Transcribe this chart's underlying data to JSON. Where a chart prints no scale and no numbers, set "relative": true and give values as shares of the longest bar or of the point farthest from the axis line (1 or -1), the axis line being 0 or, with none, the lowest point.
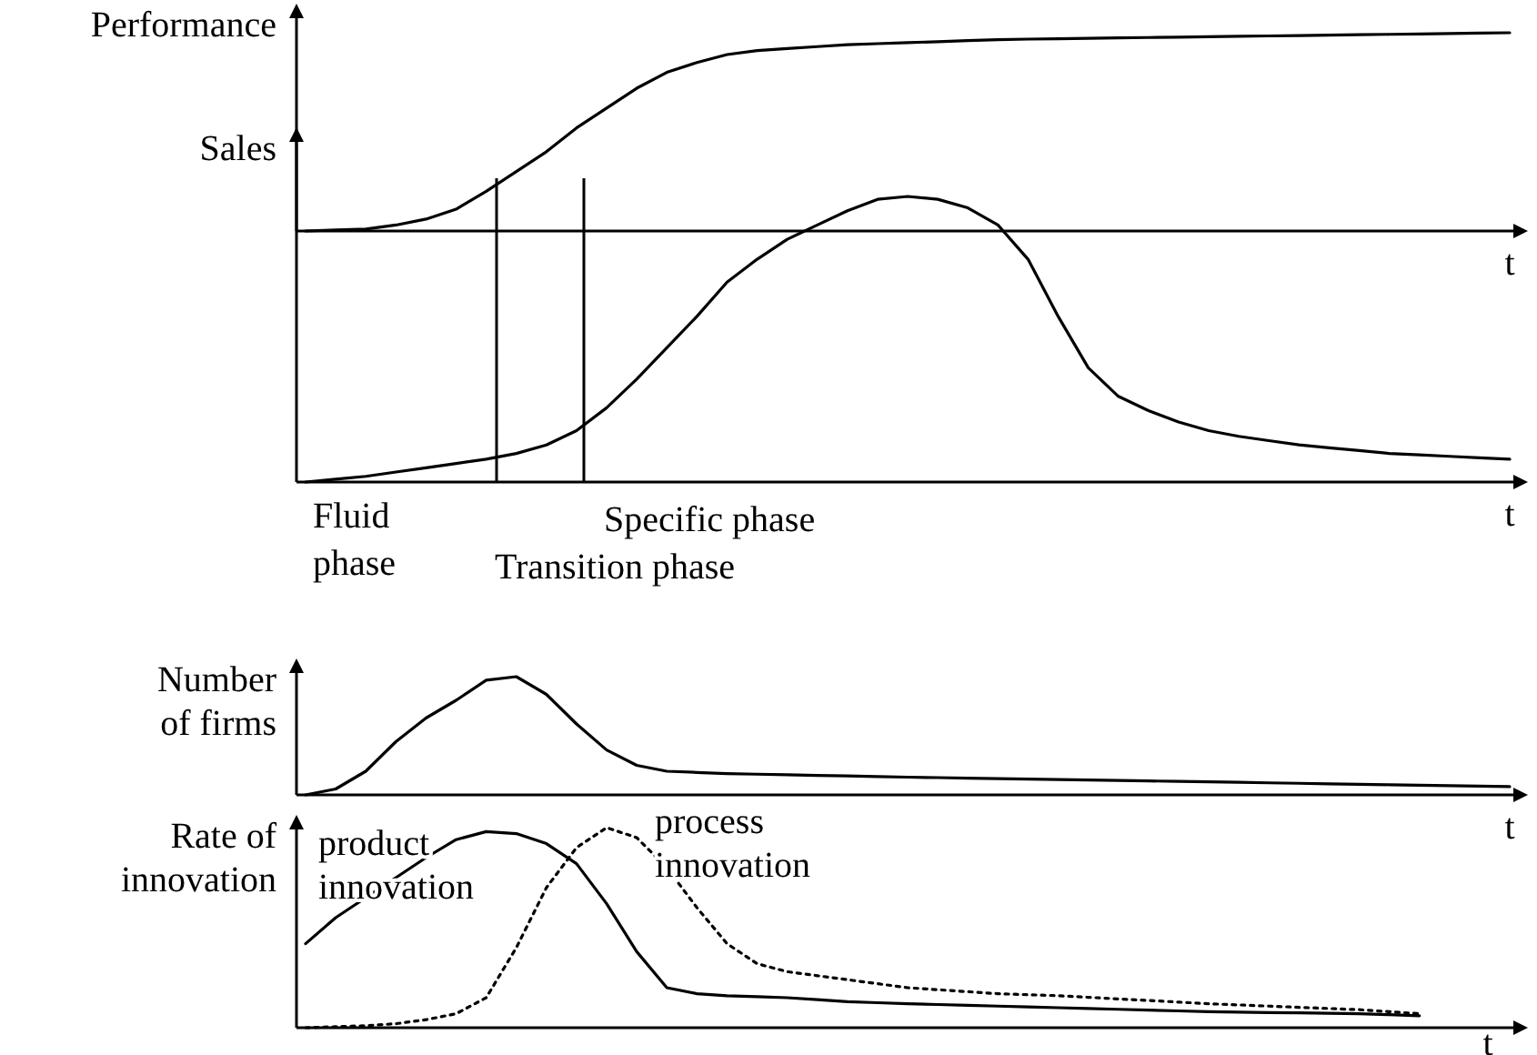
{
  "chart_data": [
    {
      "type": "line",
      "relative": true,
      "ylabel": "Performance",
      "xlabel": "t",
      "legend": false,
      "categories": [
        null,
        null,
        null,
        null,
        null,
        null,
        null,
        null,
        null,
        null,
        null,
        null,
        null,
        null,
        null,
        null,
        null,
        null,
        null,
        null,
        null,
        null,
        null,
        null,
        null,
        null,
        null,
        null,
        null,
        null,
        null,
        null,
        null,
        null,
        null,
        null,
        null,
        null,
        null,
        null,
        null
      ],
      "series": [
        {
          "color": "#000000",
          "line_style": "solid",
          "values": [
            0,
            0.005,
            0.01,
            0.03,
            0.06,
            0.11,
            0.2,
            0.3,
            0.4,
            0.52,
            0.62,
            0.72,
            0.8,
            0.85,
            0.89,
            0.91,
            0.92,
            0.93,
            0.94,
            0.945,
            0.95,
            0.955,
            0.96,
            0.965,
            0.968,
            0.97,
            0.972,
            0.974,
            0.976,
            0.978,
            0.98,
            0.982,
            0.984,
            0.986,
            0.988,
            0.99,
            0.992,
            0.994,
            0.996,
            0.998,
            1
          ]
        }
      ]
    },
    {
      "type": "line",
      "relative": true,
      "ylabel": "Sales",
      "xlabel": "t",
      "legend": false,
      "categories": [
        null,
        null,
        null,
        null,
        null,
        null,
        null,
        null,
        null,
        null,
        null,
        null,
        null,
        null,
        null,
        null,
        null,
        null,
        null,
        null,
        null,
        null,
        null,
        null,
        null,
        null,
        null,
        null,
        null,
        null,
        null,
        null,
        null,
        null,
        null,
        null,
        null,
        null,
        null,
        null,
        null
      ],
      "annotations": [
        "Fluid phase",
        "Transition phase",
        "Specific phase"
      ],
      "series": [
        {
          "color": "#000000",
          "line_style": "solid",
          "values": [
            0,
            0.01,
            0.02,
            0.035,
            0.05,
            0.065,
            0.08,
            0.1,
            0.13,
            0.18,
            0.26,
            0.36,
            0.47,
            0.58,
            0.7,
            0.78,
            0.85,
            0.9,
            0.95,
            0.99,
            1,
            0.99,
            0.96,
            0.9,
            0.78,
            0.58,
            0.4,
            0.3,
            0.25,
            0.21,
            0.18,
            0.16,
            0.145,
            0.13,
            0.12,
            0.11,
            0.1,
            0.095,
            0.09,
            0.085,
            0.08
          ]
        }
      ]
    },
    {
      "type": "line",
      "relative": true,
      "ylabel": "Number of firms",
      "xlabel": "t",
      "legend": false,
      "categories": [
        null,
        null,
        null,
        null,
        null,
        null,
        null,
        null,
        null,
        null,
        null,
        null,
        null,
        null,
        null,
        null,
        null,
        null,
        null,
        null,
        null,
        null,
        null,
        null,
        null,
        null,
        null,
        null,
        null,
        null,
        null,
        null,
        null,
        null,
        null,
        null,
        null,
        null,
        null,
        null,
        null
      ],
      "series": [
        {
          "color": "#000000",
          "line_style": "solid",
          "values": [
            0,
            0.05,
            0.2,
            0.45,
            0.65,
            0.8,
            0.97,
            1,
            0.85,
            0.6,
            0.38,
            0.25,
            0.2,
            0.19,
            0.18,
            0.175,
            0.17,
            0.165,
            0.16,
            0.155,
            0.15,
            0.146,
            0.142,
            0.138,
            0.134,
            0.13,
            0.126,
            0.122,
            0.118,
            0.114,
            0.11,
            0.106,
            0.102,
            0.098,
            0.094,
            0.09,
            0.086,
            0.082,
            0.078,
            0.074,
            0.07
          ]
        }
      ]
    },
    {
      "type": "line",
      "relative": true,
      "ylabel": "Rate of innovation",
      "xlabel": "t",
      "legend": "top left",
      "categories": [
        null,
        null,
        null,
        null,
        null,
        null,
        null,
        null,
        null,
        null,
        null,
        null,
        null,
        null,
        null,
        null,
        null,
        null,
        null,
        null,
        null,
        null,
        null,
        null,
        null,
        null,
        null,
        null,
        null,
        null,
        null,
        null,
        null,
        null,
        null,
        null,
        null,
        null,
        null,
        null,
        null
      ],
      "series": [
        {
          "name": "product innovation",
          "color": "#000000",
          "line_style": "solid",
          "values": [
            0.42,
            0.55,
            0.65,
            0.75,
            0.85,
            0.94,
            0.98,
            0.97,
            0.92,
            0.82,
            0.62,
            0.38,
            0.2,
            0.17,
            0.16,
            0.155,
            0.15,
            0.14,
            0.13,
            0.125,
            0.12,
            0.116,
            0.112,
            0.108,
            0.104,
            0.1,
            0.096,
            0.092,
            0.088,
            0.084,
            0.08,
            0.078,
            0.076,
            0.074,
            0.072,
            0.07,
            0.065,
            0.06,
            null,
            null,
            null
          ]
        },
        {
          "name": "process innovation",
          "color": "#000000",
          "line_style": "dotted",
          "values": [
            0,
            0.005,
            0.01,
            0.02,
            0.04,
            0.07,
            0.15,
            0.4,
            0.7,
            0.9,
            1,
            0.95,
            0.8,
            0.6,
            0.42,
            0.32,
            0.28,
            0.26,
            0.24,
            0.22,
            0.2,
            0.19,
            0.18,
            0.17,
            0.165,
            0.16,
            0.152,
            0.144,
            0.136,
            0.128,
            0.12,
            0.114,
            0.108,
            0.102,
            0.096,
            0.09,
            0.08,
            0.07,
            null,
            null,
            null
          ]
        }
      ]
    }
  ]
}
